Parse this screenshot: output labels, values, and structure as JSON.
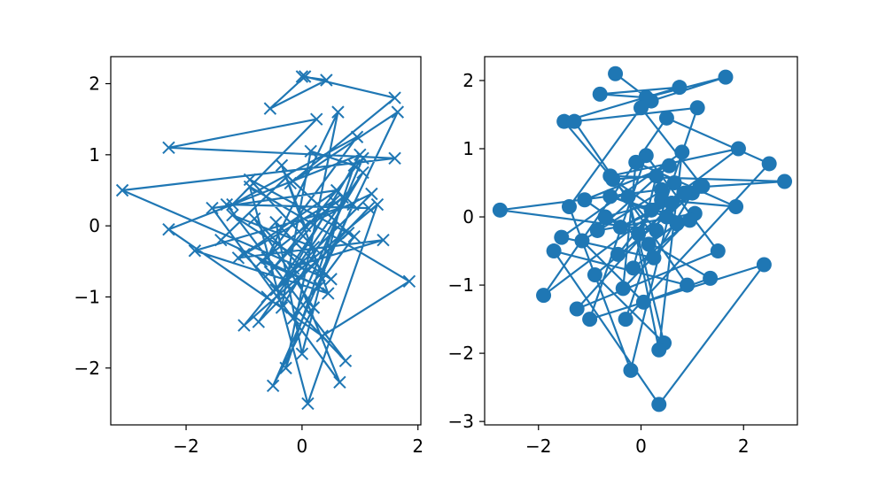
{
  "chart_data": [
    {
      "type": "line",
      "marker": "x",
      "color": "#1f77b4",
      "xlim": [
        -3.3,
        2.05
      ],
      "ylim": [
        -2.8,
        2.38
      ],
      "xticks": [
        -2,
        0,
        2
      ],
      "xtick_labels": [
        "−2",
        "0",
        "2"
      ],
      "yticks": [
        -2,
        -1,
        0,
        1,
        2
      ],
      "ytick_labels": [
        "−2",
        "−1",
        "0",
        "1",
        "2"
      ],
      "grid": false,
      "x": [
        0.0,
        0.42,
        -0.55,
        0.05,
        1.6,
        -0.2,
        1.65,
        0.3,
        -3.1,
        1.6,
        -2.3,
        0.25,
        -1.2,
        0.95,
        -0.6,
        0.62,
        -0.28,
        0.9,
        0.15,
        -0.35,
        1.05,
        -0.75,
        1.15,
        -1.3,
        0.75,
        -1.0,
        0.55,
        -0.45,
        1.3,
        0.1,
        -0.9,
        1.85,
        0.35,
        -2.3,
        1.0,
        -0.15,
        0.65,
        -1.55,
        0.6,
        -1.1,
        1.4,
        -0.05,
        -0.82,
        0.2,
        -0.5,
        0.88,
        -1.85,
        0.45,
        -0.35,
        0.05,
        1.2,
        -0.6,
        -1.0,
        0.8,
        -0.25,
        -1.4,
        0.3,
        -0.7,
        0.7,
        0.0,
        -0.45,
        0.5,
        -1.2,
        0.2,
        -0.9,
        0.9,
        -0.15,
        1.05,
        -0.55,
        0.4
      ],
      "y": [
        2.1,
        2.05,
        1.65,
        2.1,
        1.8,
        0.6,
        1.6,
        -0.7,
        0.5,
        0.95,
        1.1,
        1.5,
        0.3,
        1.25,
        -0.45,
        1.6,
        -2.0,
        0.85,
        1.05,
        -1.15,
        0.75,
        -1.35,
        0.25,
        0.3,
        -1.9,
        -0.4,
        0.35,
        -0.9,
        0.3,
        -2.5,
        0.55,
        -0.78,
        -1.55,
        -0.05,
        1.0,
        -0.6,
        -2.2,
        0.25,
        0.5,
        -0.45,
        -0.2,
        -0.55,
        0.1,
        -1.15,
        -2.25,
        0.3,
        -0.35,
        -0.95,
        0.85,
        0.0,
        0.45,
        -1.0,
        -1.4,
        -0.1,
        0.7,
        -0.2,
        -0.85,
        -0.5,
        0.4,
        -1.8,
        0.05,
        -0.75,
        0.15,
        -0.3,
        0.65,
        -0.15,
        -1.3,
        0.95,
        -0.65,
        0.2
      ]
    },
    {
      "type": "line",
      "marker": "o",
      "color": "#1f77b4",
      "xlim": [
        -3.05,
        3.05
      ],
      "ylim": [
        -3.05,
        2.35
      ],
      "xticks": [
        -2,
        0,
        2
      ],
      "xtick_labels": [
        "−2",
        "0",
        "2"
      ],
      "yticks": [
        -3,
        -2,
        -1,
        0,
        1,
        2
      ],
      "ytick_labels": [
        "−3",
        "−2",
        "−1",
        "0",
        "1",
        "2"
      ],
      "grid": false,
      "x": [
        -0.5,
        0.2,
        1.65,
        0.1,
        -0.8,
        0.75,
        -1.5,
        0.3,
        -2.75,
        0.4,
        2.8,
        -0.6,
        1.9,
        -1.9,
        0.5,
        2.5,
        -0.3,
        1.1,
        -1.3,
        0.9,
        -1.7,
        0.35,
        2.4,
        -1.0,
        0.1,
        1.5,
        -1.25,
        0.6,
        -0.2,
        -1.4,
        0.0,
        1.2,
        -0.9,
        0.45,
        -0.25,
        0.35,
        0.8,
        -1.55,
        0.25,
        1.0,
        -0.7,
        1.35,
        0.05,
        -1.15,
        0.65,
        -0.45,
        0.4,
        1.85,
        -0.1,
        -0.35,
        1.05,
        -0.85,
        0.55,
        -1.1,
        0.15,
        0.7,
        -0.55,
        0.3,
        -0.15,
        0.95,
        -0.6,
        0.5,
        1.15,
        -0.05,
        0.2,
        0.85,
        -0.4,
        0.6
      ],
      "y": [
        2.1,
        1.7,
        2.05,
        1.75,
        1.8,
        1.9,
        1.4,
        -0.2,
        0.1,
        0.4,
        0.52,
        0.6,
        1.0,
        -1.15,
        1.45,
        0.78,
        -1.5,
        1.6,
        1.4,
        -1.0,
        -0.5,
        -2.75,
        -0.7,
        -1.5,
        0.9,
        -0.5,
        -1.35,
        0.2,
        -2.25,
        0.15,
        1.6,
        0.45,
        -0.85,
        -1.85,
        0.3,
        -1.95,
        0.95,
        -0.3,
        -0.6,
        0.35,
        0.0,
        -0.9,
        -1.25,
        -0.35,
        0.5,
        -0.55,
        0.25,
        0.15,
        0.8,
        -1.05,
        0.05,
        -0.2,
        0.75,
        0.25,
        -0.4,
        -0.1,
        0.55,
        0.6,
        -0.75,
        -0.05,
        0.3,
        0.0,
        0.45,
        -0.25,
        0.1,
        0.35,
        -0.15,
        0.2
      ]
    }
  ]
}
